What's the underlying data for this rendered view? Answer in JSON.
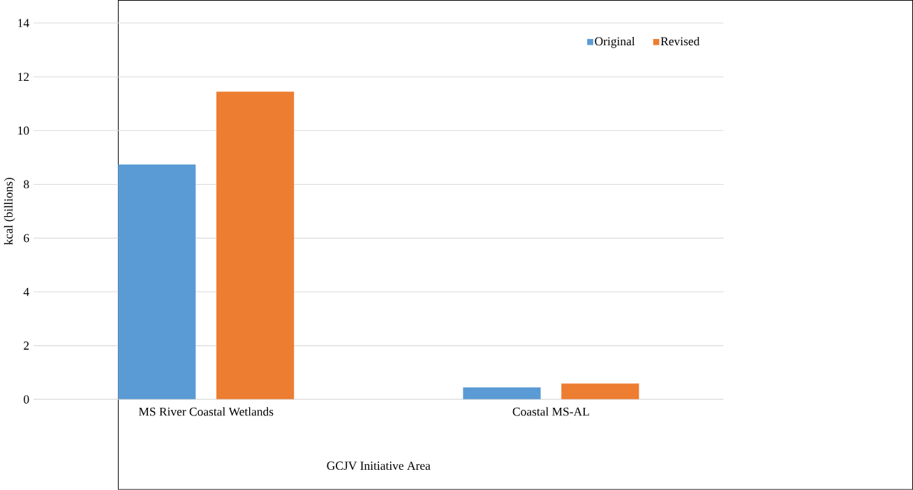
{
  "chart_data": {
    "type": "bar",
    "xlabel": "GCJV Initiative Area",
    "ylabel": "kcal (billions)",
    "categories": [
      "MS River Coastal Wetlands",
      "Coastal MS-AL"
    ],
    "series": [
      {
        "name": "Original",
        "color": "#5b9bd5",
        "values": [
          8.74,
          0.45
        ]
      },
      {
        "name": "Revised",
        "color": "#ed7d31",
        "values": [
          11.45,
          0.59
        ]
      }
    ],
    "ylim": [
      0,
      14
    ],
    "yticks": [
      0,
      2,
      4,
      6,
      8,
      10,
      12,
      14
    ],
    "grid": "y",
    "legend": "top right"
  }
}
